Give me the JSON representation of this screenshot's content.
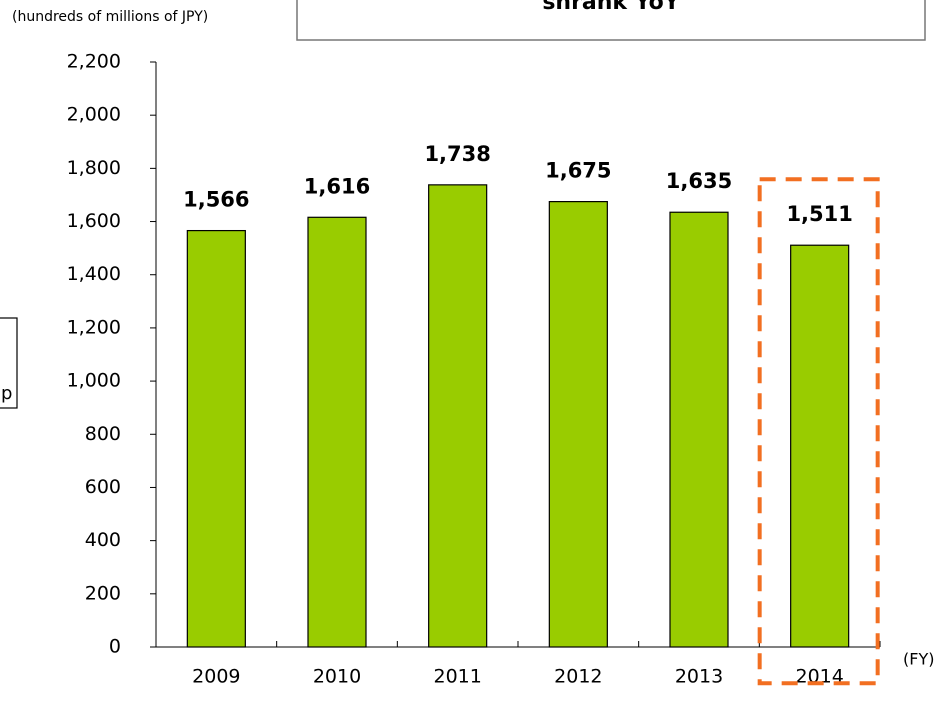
{
  "chart_data": {
    "type": "bar",
    "title": "shrank YoY",
    "y_axis_label": "(hundreds of millions of JPY)",
    "x_axis_label": "(FY)",
    "side_note": "p",
    "categories": [
      "2009",
      "2010",
      "2011",
      "2012",
      "2013",
      "2014"
    ],
    "values": [
      1566,
      1616,
      1738,
      1675,
      1635,
      1511
    ],
    "value_labels": [
      "1,566",
      "1,616",
      "1,738",
      "1,675",
      "1,635",
      "1,511"
    ],
    "color": "#99cc00",
    "highlight_index": 5,
    "highlight_color": "#f26f21",
    "ylim": [
      0,
      2200
    ],
    "yticks": [
      0,
      200,
      400,
      600,
      800,
      {
        "value": 1000,
        "label": "1,000"
      },
      {
        "value": 1200,
        "label": "1,200"
      },
      {
        "value": 1400,
        "label": "1,400"
      },
      {
        "value": 1600,
        "label": "1,600"
      },
      {
        "value": 1800,
        "label": "1,800"
      },
      {
        "value": 2000,
        "label": "2,000"
      },
      {
        "value": 2200,
        "label": "2,200"
      }
    ],
    "grid": false
  }
}
